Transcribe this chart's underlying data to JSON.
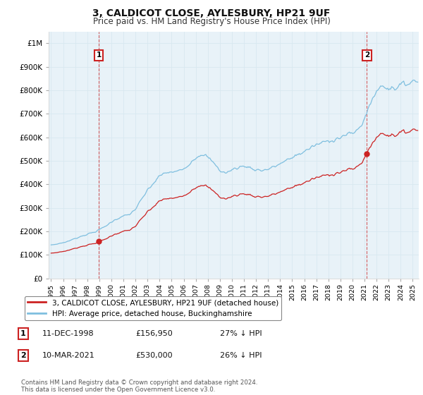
{
  "title": "3, CALDICOT CLOSE, AYLESBURY, HP21 9UF",
  "subtitle": "Price paid vs. HM Land Registry's House Price Index (HPI)",
  "title_fontsize": 10,
  "subtitle_fontsize": 8.5,
  "hpi_color": "#7fbfdf",
  "price_color": "#cc2222",
  "marker_color": "#cc2222",
  "grid_color": "#d8e8f0",
  "background_color": "#ffffff",
  "chart_bg": "#e8f2f8",
  "legend_label_price": "3, CALDICOT CLOSE, AYLESBURY, HP21 9UF (detached house)",
  "legend_label_hpi": "HPI: Average price, detached house, Buckinghamshire",
  "footnote": "Contains HM Land Registry data © Crown copyright and database right 2024.\nThis data is licensed under the Open Government Licence v3.0.",
  "transaction1_date": "11-DEC-1998",
  "transaction1_price": "£156,950",
  "transaction1_hpi": "27% ↓ HPI",
  "transaction1_year": 1998.95,
  "transaction1_value": 156950,
  "transaction2_date": "10-MAR-2021",
  "transaction2_price": "£530,000",
  "transaction2_hpi": "26% ↓ HPI",
  "transaction2_year": 2021.19,
  "transaction2_value": 530000,
  "ylim": [
    0,
    1050000
  ],
  "yticks": [
    0,
    100000,
    200000,
    300000,
    400000,
    500000,
    600000,
    700000,
    800000,
    900000,
    1000000
  ],
  "ytick_labels": [
    "£0",
    "£100K",
    "£200K",
    "£300K",
    "£400K",
    "£500K",
    "£600K",
    "£700K",
    "£800K",
    "£900K",
    "£1M"
  ],
  "xlim_start": 1994.8,
  "xlim_end": 2025.5
}
